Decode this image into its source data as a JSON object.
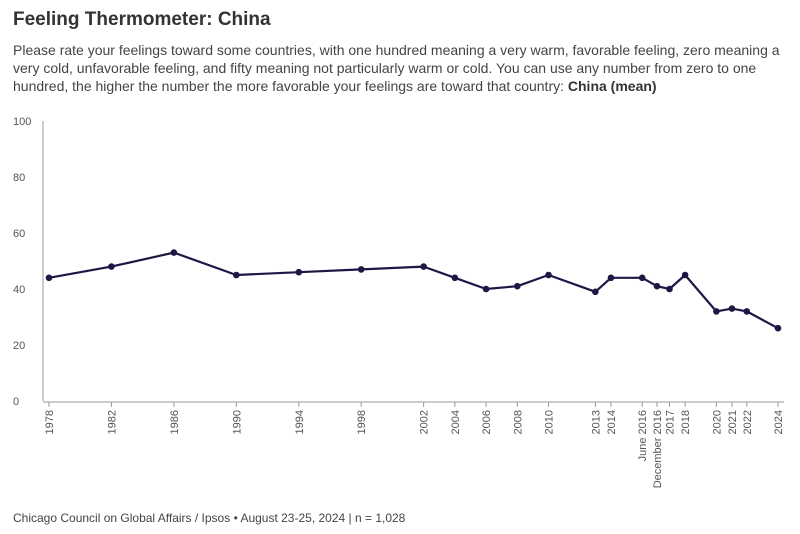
{
  "header": {
    "title": "Feeling Thermometer: China",
    "subtitle_text": "Please rate your feelings toward some countries, with one hundred meaning a very warm, favorable feeling, zero meaning a very cold, unfavorable feeling, and fifty meaning not particularly warm or cold.  You can use any number from zero to one hundred, the higher the number the more favorable your feelings are toward that country: ",
    "subtitle_bold": "China (mean)"
  },
  "footer": {
    "source": "Chicago Council on Global Affairs / Ipsos • August 23-25, 2024 | n = 1,028"
  },
  "colors": {
    "line": "#1f1646",
    "axis": "#999999"
  },
  "chart_data": {
    "type": "line",
    "title": "Feeling Thermometer: China",
    "xlabel": "",
    "ylabel": "",
    "ylim": [
      0,
      100
    ],
    "yticks": [
      0,
      20,
      40,
      60,
      80,
      100
    ],
    "series": [
      {
        "name": "China (mean)",
        "points": [
          {
            "label": "1978",
            "t": 1978.0,
            "value": 44
          },
          {
            "label": "1982",
            "t": 1982.0,
            "value": 48
          },
          {
            "label": "1986",
            "t": 1986.0,
            "value": 53
          },
          {
            "label": "1990",
            "t": 1990.0,
            "value": 45
          },
          {
            "label": "1994",
            "t": 1994.0,
            "value": 46
          },
          {
            "label": "1998",
            "t": 1998.0,
            "value": 47
          },
          {
            "label": "2002",
            "t": 2002.0,
            "value": 48
          },
          {
            "label": "2004",
            "t": 2004.0,
            "value": 44
          },
          {
            "label": "2006",
            "t": 2006.0,
            "value": 40
          },
          {
            "label": "2008",
            "t": 2008.0,
            "value": 41
          },
          {
            "label": "2010",
            "t": 2010.0,
            "value": 45
          },
          {
            "label": "2013",
            "t": 2013.0,
            "value": 39
          },
          {
            "label": "2014",
            "t": 2014.0,
            "value": 44
          },
          {
            "label": "June 2016",
            "t": 2016.0,
            "value": 44
          },
          {
            "label": "December 2016",
            "t": 2016.95,
            "value": 41
          },
          {
            "label": "2017",
            "t": 2017.75,
            "value": 40
          },
          {
            "label": "2018",
            "t": 2018.75,
            "value": 45
          },
          {
            "label": "2020",
            "t": 2020.75,
            "value": 32
          },
          {
            "label": "2021",
            "t": 2021.75,
            "value": 33
          },
          {
            "label": "2022",
            "t": 2022.7,
            "value": 32
          },
          {
            "label": "2024",
            "t": 2024.7,
            "value": 26
          }
        ]
      }
    ]
  }
}
